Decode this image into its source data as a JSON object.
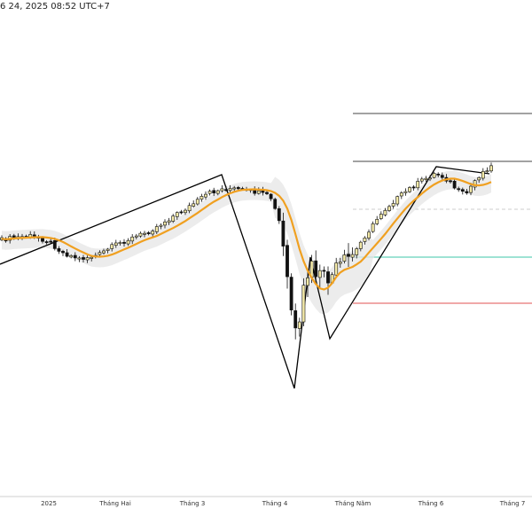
{
  "header": {
    "datetime_text": "6 24, 2025 08:52 UTC+7"
  },
  "chart_data": {
    "type": "candlestick",
    "title": "",
    "xlabel": "",
    "ylabel": "",
    "x_axis_labels": [
      "2025",
      "Tháng Hai",
      "Tháng 3",
      "Tháng 4",
      "Tháng Năm",
      "Tháng 6",
      "Tháng 7"
    ],
    "colors": {
      "bull_fill": "#f3e9a8",
      "bear_fill": "#111111",
      "ma_line": "#f0a020",
      "band_fill": "#e6e6e6",
      "pattern_line": "#000000",
      "level_upper": "#444444",
      "level_dashed": "#cccccc",
      "level_teal": "#3cc7a8",
      "level_red": "#e05050"
    },
    "y_range": [
      0,
      600
    ],
    "candles": [],
    "ma": [],
    "band_upper": [],
    "band_lower": [],
    "zigzag_points": [],
    "horizontal_levels": []
  }
}
